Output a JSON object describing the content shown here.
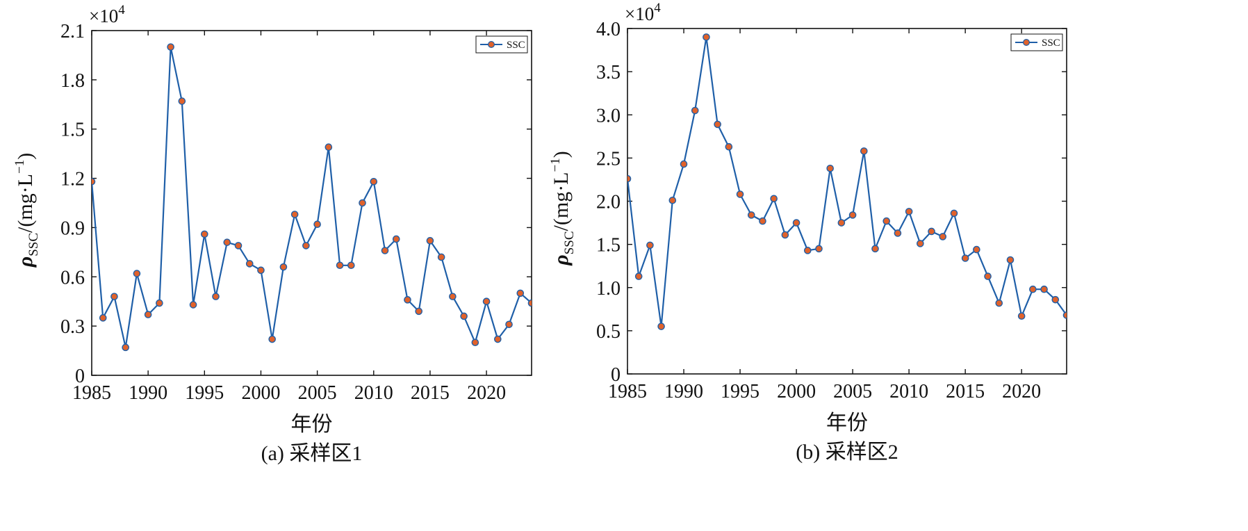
{
  "chart_data": [
    {
      "type": "line",
      "caption": "(a) 采样区1",
      "xlabel": "年份",
      "ylabel": "ρSSC/(mg·L−1)",
      "ylabel_parts": {
        "rho": "ρ",
        "sub": "SSC",
        "unit": "/(mg·L",
        "sup": "−1",
        "close": ")"
      },
      "y_multiplier": "×10",
      "y_multiplier_exp": "4",
      "xlim": [
        1985,
        2024
      ],
      "ylim": [
        0,
        2.1
      ],
      "xticks": [
        1985,
        1990,
        1995,
        2000,
        2005,
        2010,
        2015,
        2020
      ],
      "xtick_labels": [
        "1985",
        "1990",
        "1995",
        "2000",
        "2005",
        "2010",
        "2015",
        "2020"
      ],
      "yticks": [
        0,
        0.3,
        0.6,
        0.9,
        1.2,
        1.5,
        1.8,
        2.1
      ],
      "ytick_labels": [
        "0",
        "0.3",
        "0.6",
        "0.9",
        "1.2",
        "1.5",
        "1.8",
        "2.1"
      ],
      "legend": {
        "label": "SSC",
        "position": "top-right"
      },
      "grid": false,
      "series": [
        {
          "name": "SSC",
          "line_color": "#1f5fa8",
          "marker_color": "#e0622b",
          "x": [
            1985,
            1986,
            1987,
            1988,
            1989,
            1990,
            1991,
            1992,
            1993,
            1994,
            1995,
            1996,
            1997,
            1998,
            1999,
            2000,
            2001,
            2002,
            2003,
            2004,
            2005,
            2006,
            2007,
            2008,
            2009,
            2010,
            2011,
            2012,
            2013,
            2014,
            2015,
            2016,
            2017,
            2018,
            2019,
            2020,
            2021,
            2022,
            2023,
            2024
          ],
          "y": [
            1.18,
            0.35,
            0.48,
            0.17,
            0.62,
            0.37,
            0.44,
            2.0,
            1.67,
            0.43,
            0.86,
            0.48,
            0.81,
            0.79,
            0.68,
            0.64,
            0.22,
            0.66,
            0.98,
            0.79,
            0.92,
            1.39,
            0.67,
            0.67,
            1.05,
            1.18,
            0.76,
            0.83,
            0.46,
            0.39,
            0.82,
            0.72,
            0.48,
            0.36,
            0.2,
            0.45,
            0.22,
            0.31,
            0.5,
            0.44
          ]
        }
      ]
    },
    {
      "type": "line",
      "caption": "(b) 采样区2",
      "xlabel": "年份",
      "ylabel": "ρSSC/(mg·L−1)",
      "ylabel_parts": {
        "rho": "ρ",
        "sub": "SSC",
        "unit": "/(mg·L",
        "sup": "−1",
        "close": ")"
      },
      "y_multiplier": "×10",
      "y_multiplier_exp": "4",
      "xlim": [
        1985,
        2024
      ],
      "ylim": [
        0,
        4.0
      ],
      "xticks": [
        1985,
        1990,
        1995,
        2000,
        2005,
        2010,
        2015,
        2020
      ],
      "xtick_labels": [
        "1985",
        "1990",
        "1995",
        "2000",
        "2005",
        "2010",
        "2015",
        "2020"
      ],
      "yticks": [
        0,
        0.5,
        1.0,
        1.5,
        2.0,
        2.5,
        3.0,
        3.5,
        4.0
      ],
      "ytick_labels": [
        "0",
        "0.5",
        "1.0",
        "1.5",
        "2.0",
        "2.5",
        "3.0",
        "3.5",
        "4.0"
      ],
      "legend": {
        "label": "SSC",
        "position": "top-right"
      },
      "grid": false,
      "series": [
        {
          "name": "SSC",
          "line_color": "#1f5fa8",
          "marker_color": "#e0622b",
          "x": [
            1985,
            1986,
            1987,
            1988,
            1989,
            1990,
            1991,
            1992,
            1993,
            1994,
            1995,
            1996,
            1997,
            1998,
            1999,
            2000,
            2001,
            2002,
            2003,
            2004,
            2005,
            2006,
            2007,
            2008,
            2009,
            2010,
            2011,
            2012,
            2013,
            2014,
            2015,
            2016,
            2017,
            2018,
            2019,
            2020,
            2021,
            2022,
            2023,
            2024
          ],
          "y": [
            2.26,
            1.13,
            1.49,
            0.55,
            2.01,
            2.43,
            3.05,
            3.9,
            2.89,
            2.63,
            2.08,
            1.84,
            1.77,
            2.03,
            1.61,
            1.75,
            1.43,
            1.45,
            2.38,
            1.75,
            1.84,
            2.58,
            1.45,
            1.77,
            1.63,
            1.88,
            1.51,
            1.65,
            1.59,
            1.86,
            1.34,
            1.44,
            1.13,
            0.82,
            1.32,
            0.67,
            0.98,
            0.98,
            0.86,
            0.68
          ]
        }
      ]
    }
  ]
}
